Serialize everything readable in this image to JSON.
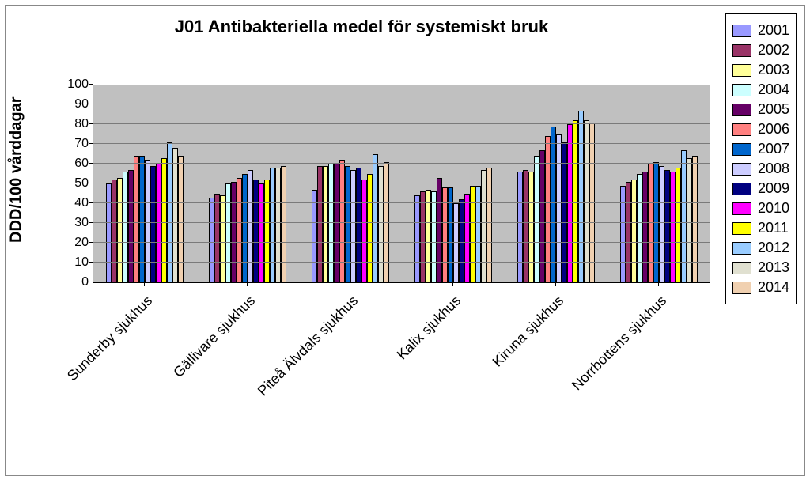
{
  "chart": {
    "type": "bar",
    "title": "J01 Antibakteriella medel för systemiskt bruk",
    "title_fontsize": 22,
    "ylabel": "DDD/100 vårddagar",
    "ylabel_fontsize": 20,
    "xlabel_fontsize": 18,
    "background_color": "#c0c0c0",
    "grid_color": "#7a7a7a",
    "ylim": [
      0,
      100
    ],
    "ytick_step": 10,
    "categories": [
      "Sunderby sjukhus",
      "Gällivare sjukhus",
      "Piteå Älvdals sjukhus",
      "Kalix sjukhus",
      "Kiruna sjukhus",
      "Norrbottens sjukhus"
    ],
    "series": [
      {
        "name": "2001",
        "color": "#9999ff",
        "values": [
          50,
          43,
          47,
          44,
          56,
          49
        ]
      },
      {
        "name": "2002",
        "color": "#993366",
        "values": [
          52,
          45,
          59,
          46,
          57,
          51
        ]
      },
      {
        "name": "2003",
        "color": "#ffff99",
        "values": [
          53,
          44,
          59,
          47,
          56,
          52
        ]
      },
      {
        "name": "2004",
        "color": "#ccffff",
        "values": [
          56,
          50,
          60,
          46,
          64,
          55
        ]
      },
      {
        "name": "2005",
        "color": "#660066",
        "values": [
          57,
          51,
          60,
          53,
          67,
          56
        ]
      },
      {
        "name": "2006",
        "color": "#ff8080",
        "values": [
          64,
          53,
          62,
          48,
          74,
          60
        ]
      },
      {
        "name": "2007",
        "color": "#0066cc",
        "values": [
          64,
          55,
          59,
          48,
          79,
          61
        ]
      },
      {
        "name": "2008",
        "color": "#ccccff",
        "values": [
          62,
          57,
          57,
          40,
          75,
          59
        ]
      },
      {
        "name": "2009",
        "color": "#000080",
        "values": [
          59,
          52,
          58,
          42,
          71,
          57
        ]
      },
      {
        "name": "2010",
        "color": "#ff00ff",
        "values": [
          60,
          50,
          52,
          45,
          80,
          56
        ]
      },
      {
        "name": "2011",
        "color": "#ffff00",
        "values": [
          63,
          52,
          55,
          49,
          82,
          58
        ]
      },
      {
        "name": "2012",
        "color": "#99ccff",
        "values": [
          71,
          58,
          65,
          49,
          87,
          67
        ]
      },
      {
        "name": "2013",
        "color": "#e0e0d0",
        "values": [
          68,
          58,
          59,
          57,
          82,
          63
        ]
      },
      {
        "name": "2014",
        "color": "#f0d0b0",
        "values": [
          64,
          59,
          61,
          58,
          81,
          64
        ]
      }
    ],
    "legend_fontsize": 18,
    "bar_group_inner_pad": 0.08,
    "bar_group_gap": 0.18
  }
}
